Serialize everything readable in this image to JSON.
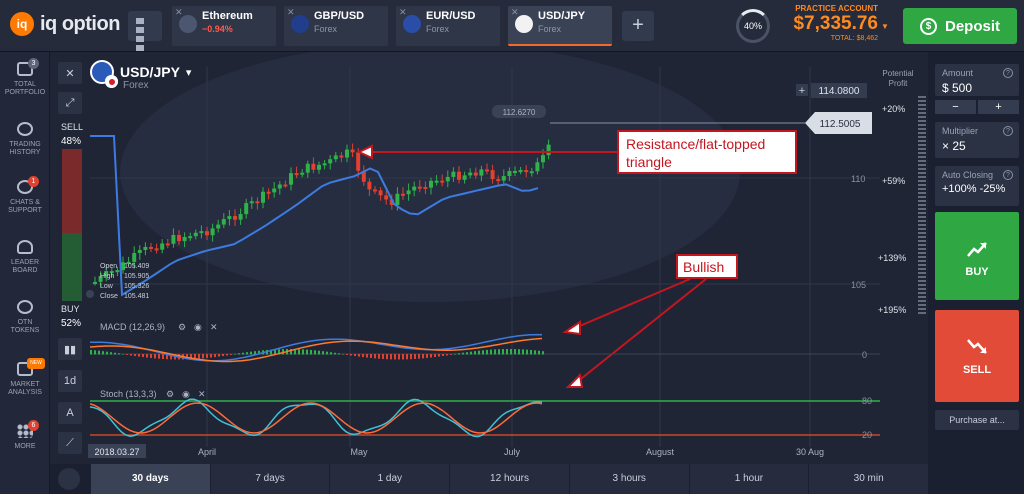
{
  "brand": {
    "logo_mark": "iq",
    "logo_text": "iq option"
  },
  "tabs": [
    {
      "name": "Ethereum",
      "sub": "−0.94%",
      "sub_red": true,
      "close": "✕"
    },
    {
      "name": "GBP/USD",
      "sub": "Forex",
      "close": "✕"
    },
    {
      "name": "EUR/USD",
      "sub": "Forex",
      "close": "✕"
    },
    {
      "name": "USD/JPY",
      "sub": "Forex",
      "close": "✕",
      "active": true
    }
  ],
  "add_tab": "+",
  "progress": {
    "label": "40%",
    "value": 40
  },
  "account": {
    "label": "PRACTICE ACCOUNT",
    "balance": "$7,335.76",
    "total": "TOTAL: $8,462",
    "caret": "▼"
  },
  "deposit": {
    "label": "Deposit",
    "icon_glyph": "$"
  },
  "sidebar": {
    "items": [
      {
        "l1": "TOTAL",
        "l2": "PORTFOLIO",
        "badge": "3",
        "badge_style": "grey",
        "icon": "portfolio-icon"
      },
      {
        "l1": "TRADING",
        "l2": "HISTORY",
        "icon": "history-icon"
      },
      {
        "l1": "CHATS &",
        "l2": "SUPPORT",
        "badge": "1",
        "icon": "chat-icon"
      },
      {
        "l1": "LEADER",
        "l2": "BOARD",
        "icon": "leaderboard-icon"
      },
      {
        "l1": "OTN",
        "l2": "TOKENS",
        "icon": "token-icon"
      },
      {
        "l1": "MARKET",
        "l2": "ANALYSIS",
        "badge": "NEW",
        "badge_style": "new",
        "icon": "market-analysis-icon"
      },
      {
        "l1": "MORE",
        "l2": "",
        "badge": "6",
        "icon": "more-icon"
      }
    ]
  },
  "chart_tools": {
    "close": "✕",
    "expand": "⤢",
    "timeframe": "1d",
    "indicator": "A"
  },
  "pair": {
    "name": "USD/JPY",
    "caret": "▾",
    "sub": "Forex"
  },
  "sentiment": {
    "sell_label": "SELL",
    "sell_pct": "48%",
    "buy_label": "BUY",
    "buy_pct": "52%"
  },
  "ohlc": {
    "open_label": "Open",
    "open": "105.409",
    "high_label": "High",
    "high": "105.905",
    "low_label": "Low",
    "low": "105.326",
    "close_label": "Close",
    "close": "105.481",
    "date": "2018.03.27"
  },
  "potential_profit": {
    "l1": "Potential",
    "l2": "Profit",
    "pcts": [
      "+20%",
      "+59%",
      "+139%",
      "+195%"
    ]
  },
  "price_labels": {
    "high": "114.0800",
    "current": "112.5005",
    "hover": "112.6270",
    "l110": "110",
    "l105": "105",
    "plus": "+"
  },
  "annotations": {
    "resistance_l1": "Resistance/flat-topped",
    "resistance_l2": "triangle",
    "bullish": "Bullish"
  },
  "indicators": {
    "macd": {
      "label": "MACD (12,26,9)",
      "zero": "0"
    },
    "stoch": {
      "label": "Stoch (13,3,3)",
      "upper": "80",
      "lower": "20"
    }
  },
  "colors": {
    "up": "#2fb24a",
    "down": "#e2412f",
    "ma": "#3d7be0",
    "signal": "#ff7a2a",
    "annotation": "#d0161f",
    "accent": "#ff8a1e"
  },
  "xaxis": {
    "labels": [
      "April",
      "May",
      "July",
      "August",
      "30 Aug"
    ]
  },
  "timeframes": [
    "30 days",
    "7 days",
    "1 day",
    "12 hours",
    "3 hours",
    "1 hour",
    "30 min"
  ],
  "right_panel": {
    "amount": {
      "label": "Amount",
      "value": "$  500",
      "minus": "−",
      "plus": "+"
    },
    "multiplier": {
      "label": "Multiplier",
      "value": "× 25"
    },
    "auto_closing": {
      "label": "Auto Closing",
      "value": "+100%  -25%"
    },
    "buy_label": "BUY",
    "sell_label": "SELL",
    "purchase_label": "Purchase at...",
    "help": "?"
  }
}
